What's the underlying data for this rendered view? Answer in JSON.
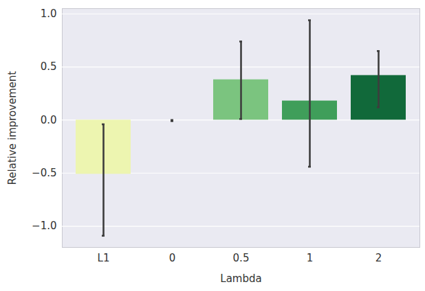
{
  "chart_data": {
    "type": "bar",
    "x_label": "Lambda",
    "y_label": "Relative improvement",
    "categories": [
      "L1",
      "0",
      "0.5",
      "1",
      "2"
    ],
    "values": [
      -0.51,
      0.0,
      0.38,
      0.18,
      0.42
    ],
    "error_low": [
      -1.09,
      -0.01,
      0.01,
      -0.44,
      0.12
    ],
    "error_high": [
      -0.04,
      0.0,
      0.74,
      0.94,
      0.65
    ],
    "colors": [
      "#edf5b0",
      "#b6e3a3",
      "#7bc47f",
      "#3f9e5a",
      "#11693a"
    ],
    "ylim": [
      -1.2,
      1.05
    ],
    "yticks": [
      {
        "value": -1.0,
        "label": "−1.0"
      },
      {
        "value": -0.5,
        "label": "−0.5"
      },
      {
        "value": 0,
        "label": "0.0"
      },
      {
        "value": 0.5,
        "label": "0.5"
      },
      {
        "value": 1.0,
        "label": "1.0"
      }
    ],
    "grid": true
  }
}
